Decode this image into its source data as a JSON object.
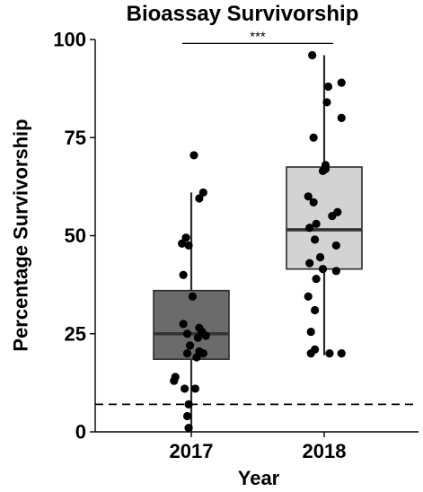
{
  "chart_data": {
    "type": "box",
    "title": "Bioassay Survivorship",
    "xlabel": "Year",
    "ylabel": "Percentage Survivorship",
    "categories": [
      "2017",
      "2018"
    ],
    "ylim": [
      0,
      100
    ],
    "yticks": [
      0,
      25,
      50,
      75,
      100
    ],
    "grid": false,
    "significance": {
      "between": [
        "2017",
        "2018"
      ],
      "y": 99,
      "label": "***"
    },
    "reference_line": {
      "y": 7,
      "style": "dashed"
    },
    "boxes": [
      {
        "category": "2017",
        "fill": "#6b6b6b",
        "q1": 18.5,
        "median": 25,
        "q3": 36,
        "whisker_low": 0,
        "whisker_high": 61,
        "points": [
          {
            "x": 0.02,
            "y": 70.5
          },
          {
            "x": 0.09,
            "y": 61
          },
          {
            "x": 0.06,
            "y": 59.5
          },
          {
            "x": -0.04,
            "y": 49.5
          },
          {
            "x": -0.07,
            "y": 48
          },
          {
            "x": -0.02,
            "y": 47.5
          },
          {
            "x": -0.06,
            "y": 40
          },
          {
            "x": 0.01,
            "y": 34.5
          },
          {
            "x": -0.06,
            "y": 27.5
          },
          {
            "x": 0.06,
            "y": 26.5
          },
          {
            "x": 0.08,
            "y": 25.5
          },
          {
            "x": -0.03,
            "y": 25
          },
          {
            "x": 0.11,
            "y": 24.5
          },
          {
            "x": 0.05,
            "y": 24
          },
          {
            "x": -0.01,
            "y": 22
          },
          {
            "x": 0.06,
            "y": 20.5
          },
          {
            "x": 0.09,
            "y": 20
          },
          {
            "x": -0.03,
            "y": 20
          },
          {
            "x": 0.04,
            "y": 19
          },
          {
            "x": -0.12,
            "y": 14
          },
          {
            "x": -0.13,
            "y": 13
          },
          {
            "x": -0.05,
            "y": 11
          },
          {
            "x": 0.03,
            "y": 11
          },
          {
            "x": -0.02,
            "y": 7
          },
          {
            "x": -0.03,
            "y": 4
          },
          {
            "x": -0.02,
            "y": 1
          }
        ]
      },
      {
        "category": "2018",
        "fill": "#d3d3d3",
        "q1": 41.5,
        "median": 51.5,
        "q3": 67.5,
        "whisker_low": 19.5,
        "whisker_high": 96,
        "points": [
          {
            "x": -0.09,
            "y": 96
          },
          {
            "x": 0.13,
            "y": 89
          },
          {
            "x": 0.03,
            "y": 88
          },
          {
            "x": 0.02,
            "y": 84
          },
          {
            "x": 0.13,
            "y": 80
          },
          {
            "x": -0.08,
            "y": 75
          },
          {
            "x": 0.01,
            "y": 68
          },
          {
            "x": 0.01,
            "y": 67
          },
          {
            "x": -0.01,
            "y": 66.5
          },
          {
            "x": -0.12,
            "y": 60
          },
          {
            "x": -0.08,
            "y": 58.5
          },
          {
            "x": 0.1,
            "y": 56
          },
          {
            "x": 0.06,
            "y": 55
          },
          {
            "x": -0.06,
            "y": 53
          },
          {
            "x": -0.11,
            "y": 52
          },
          {
            "x": -0.07,
            "y": 49
          },
          {
            "x": 0.09,
            "y": 47.5
          },
          {
            "x": -0.03,
            "y": 44.5
          },
          {
            "x": -0.11,
            "y": 43
          },
          {
            "x": -0.01,
            "y": 41.5
          },
          {
            "x": 0.09,
            "y": 41
          },
          {
            "x": -0.06,
            "y": 39
          },
          {
            "x": -0.12,
            "y": 34.5
          },
          {
            "x": -0.07,
            "y": 31
          },
          {
            "x": -0.1,
            "y": 25.5
          },
          {
            "x": -0.07,
            "y": 21
          },
          {
            "x": -0.1,
            "y": 20
          },
          {
            "x": 0.04,
            "y": 20
          },
          {
            "x": 0.13,
            "y": 20
          }
        ]
      }
    ]
  }
}
